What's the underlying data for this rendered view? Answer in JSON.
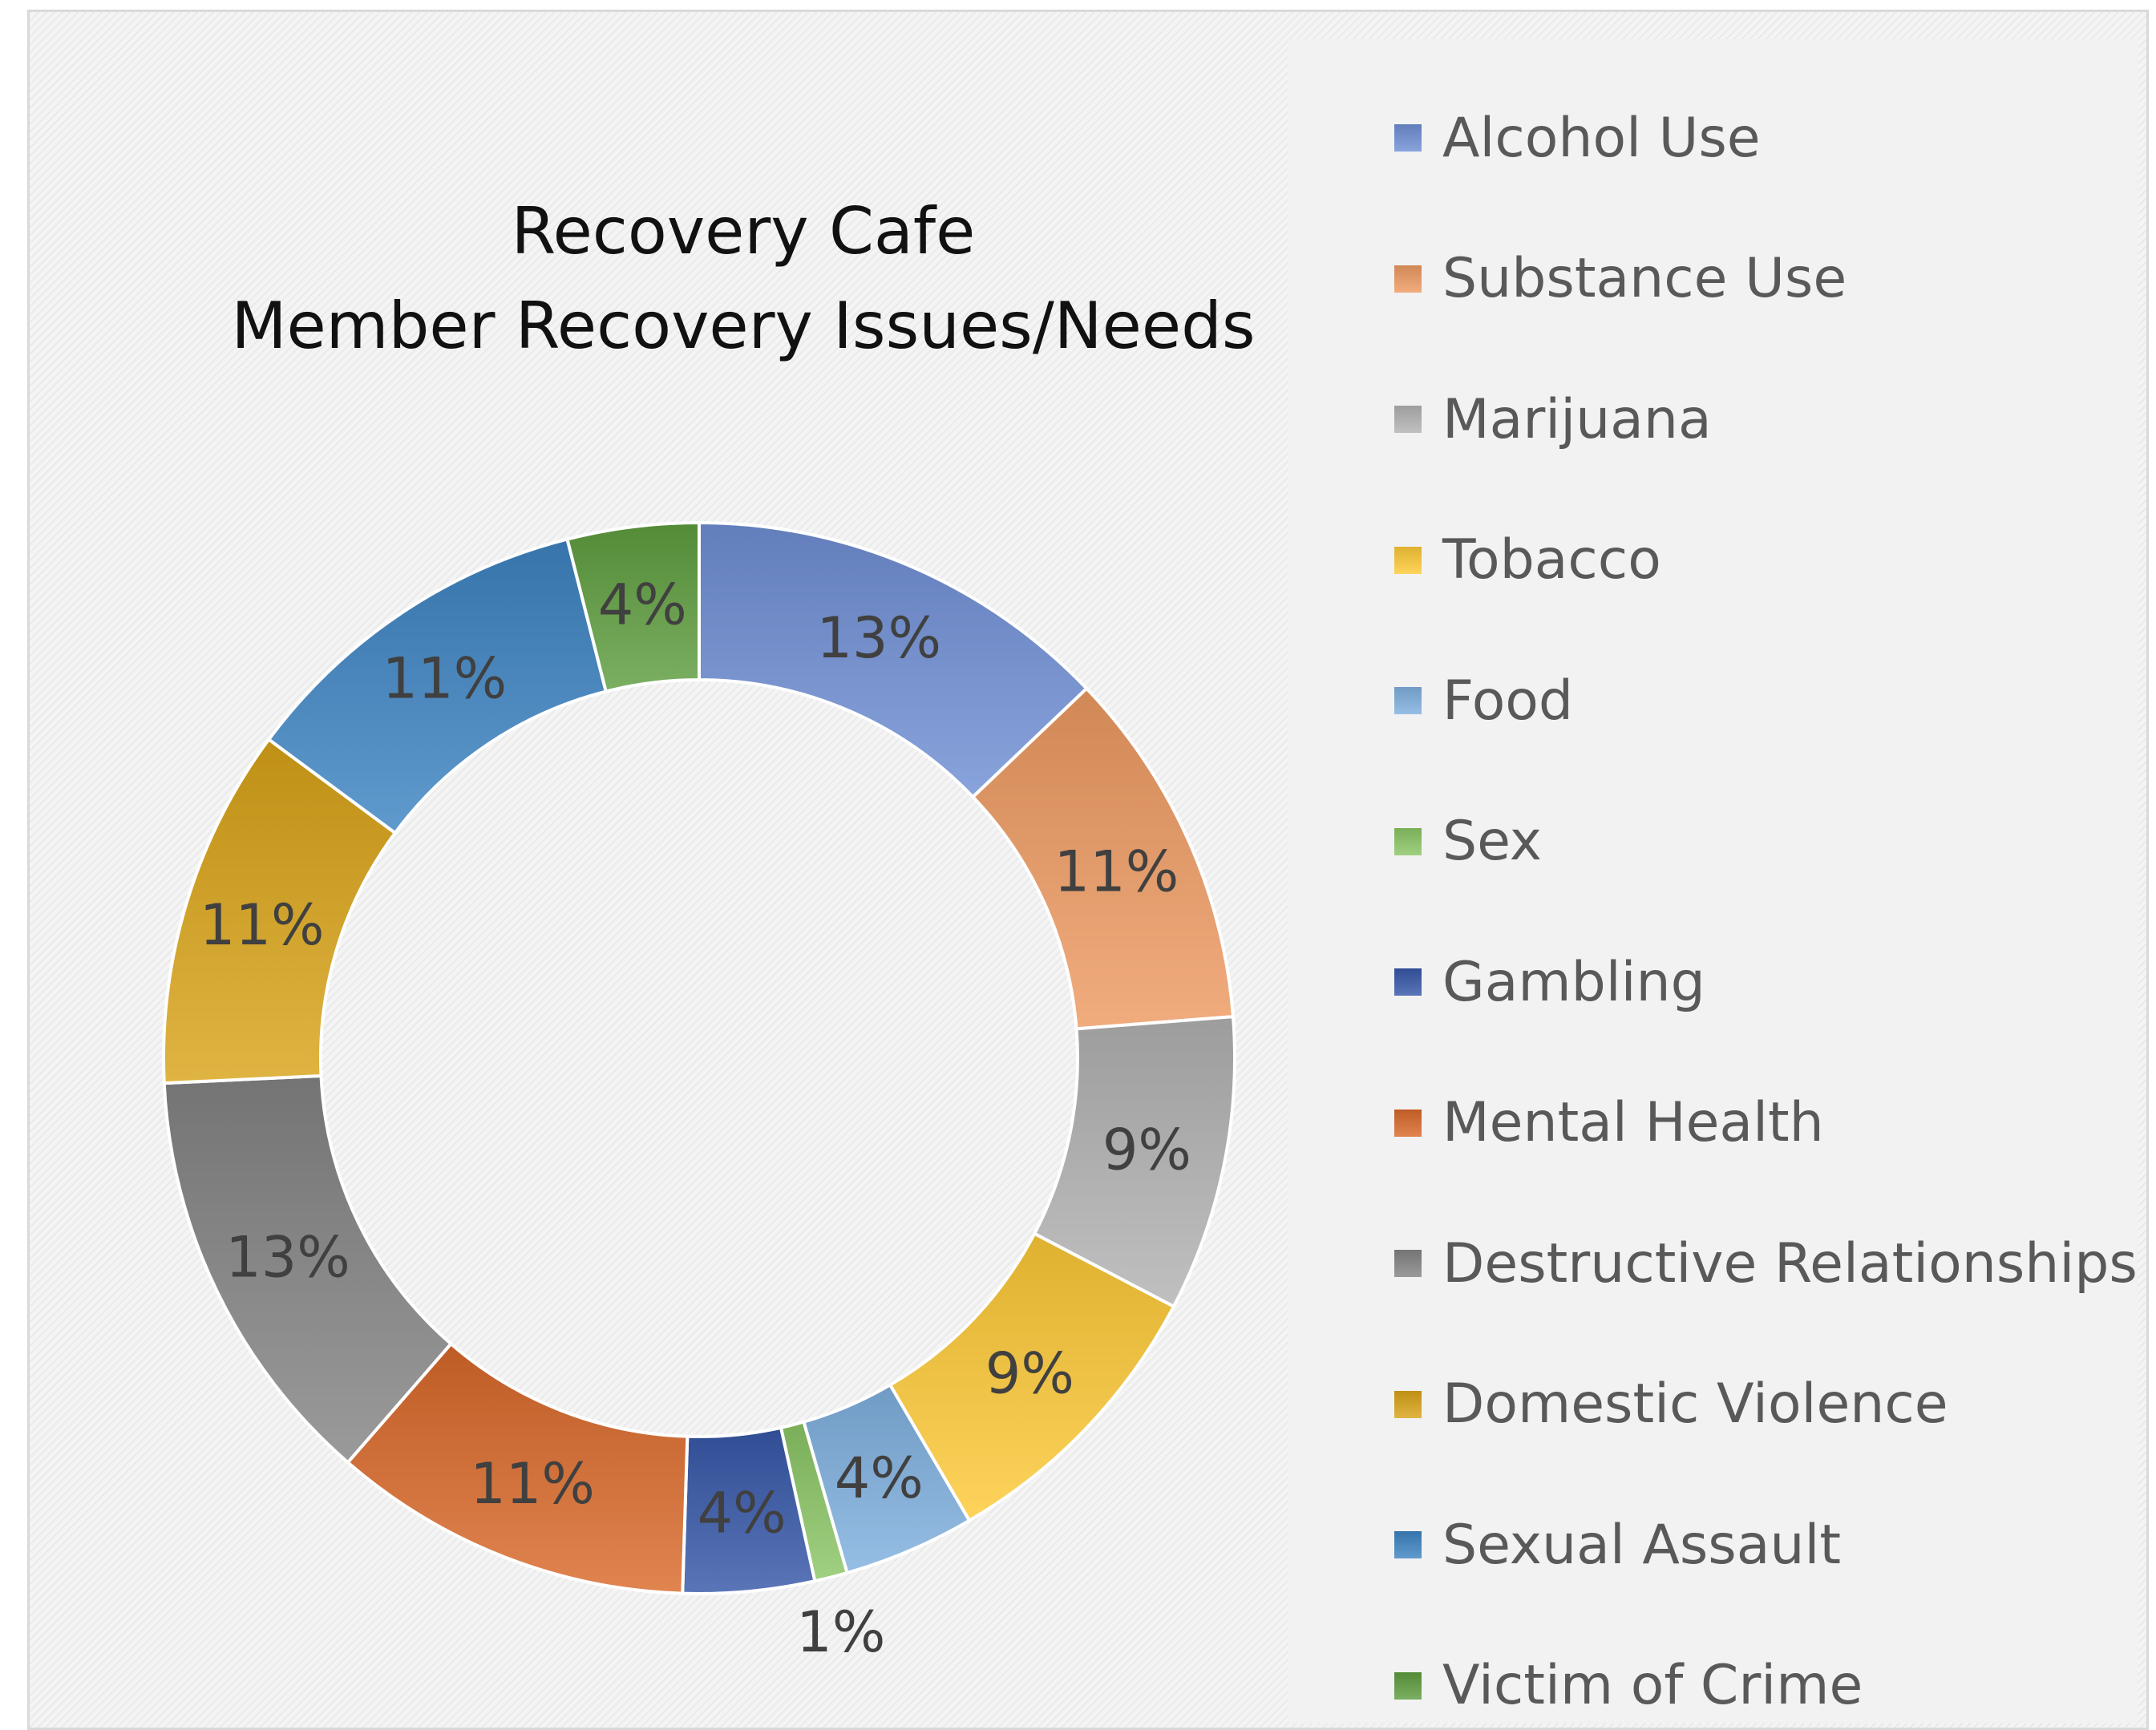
{
  "chart_data": {
    "type": "pie",
    "style": "doughnut",
    "title": [
      "Recovery Cafe",
      "Member Recovery Issues/Needs"
    ],
    "categories": [
      "Alcohol Use",
      "Substance Use",
      "Marijuana",
      "Tobacco",
      "Food",
      "Sex",
      "Gambling",
      "Mental Health",
      "Destructive Relationships",
      "Domestic Violence",
      "Sexual Assault",
      "Victim of Crime"
    ],
    "values": [
      13,
      11,
      9,
      9,
      4,
      1,
      4,
      11,
      13,
      11,
      11,
      4
    ],
    "data_labels": [
      "13%",
      "11%",
      "9%",
      "9%",
      "4%",
      "1%",
      "4%",
      "11%",
      "13%",
      "11%",
      "11%",
      "4%"
    ],
    "colors": [
      "#6f8fd4",
      "#ee9a62",
      "#b2b2b2",
      "#fdc937",
      "#7fb0df",
      "#8bc665",
      "#3657a8",
      "#d9692a",
      "#848484",
      "#d9a418",
      "#3d84c2",
      "#5e9e3f"
    ],
    "legend_position": "right",
    "grid": false
  }
}
